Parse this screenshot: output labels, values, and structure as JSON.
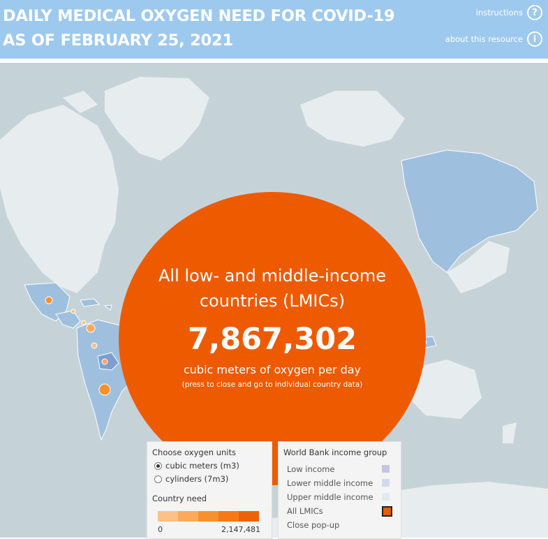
{
  "header": {
    "title_line1": "DAILY MEDICAL OXYGEN NEED FOR COVID-19",
    "title_line2": "AS OF FEBRUARY 25, 2021",
    "instructions_label": "instructions",
    "instructions_icon": "?",
    "about_label": "about this resource",
    "about_icon": "i"
  },
  "popup": {
    "line1": "All low- and middle-income",
    "line2": "countries (LMICs)",
    "value": "7,867,302",
    "unit": "cubic meters of oxygen per day",
    "hint": "(press to close and go to individual country data)"
  },
  "units_panel": {
    "title": "Choose oxygen units",
    "options": [
      {
        "label": "cubic meters (m3)",
        "selected": true
      },
      {
        "label": "cylinders (7m3)",
        "selected": false
      }
    ],
    "need_title": "Country need",
    "scale_min": "0",
    "scale_max": "2,147,481",
    "scale_colors": [
      "#fdc086",
      "#fcaa5a",
      "#f9902e",
      "#f57a14",
      "#ee6206"
    ]
  },
  "income_panel": {
    "title": "World Bank income group",
    "items": [
      {
        "label": "Low income",
        "color": "#c4c4e6"
      },
      {
        "label": "Lower middle income",
        "color": "#cfdaee"
      },
      {
        "label": "Upper middle income",
        "color": "#e1e9f3"
      },
      {
        "label": "All LMICs",
        "color": "#ee5a00"
      },
      {
        "label": "Close pop-up",
        "color": ""
      }
    ]
  },
  "colors": {
    "header_bg": "#9ec9ee",
    "map_water": "#c5d3d9",
    "land": "#e7ecee",
    "lmic_fill": "#9fbfdf",
    "bubble": "#ee5a00"
  }
}
